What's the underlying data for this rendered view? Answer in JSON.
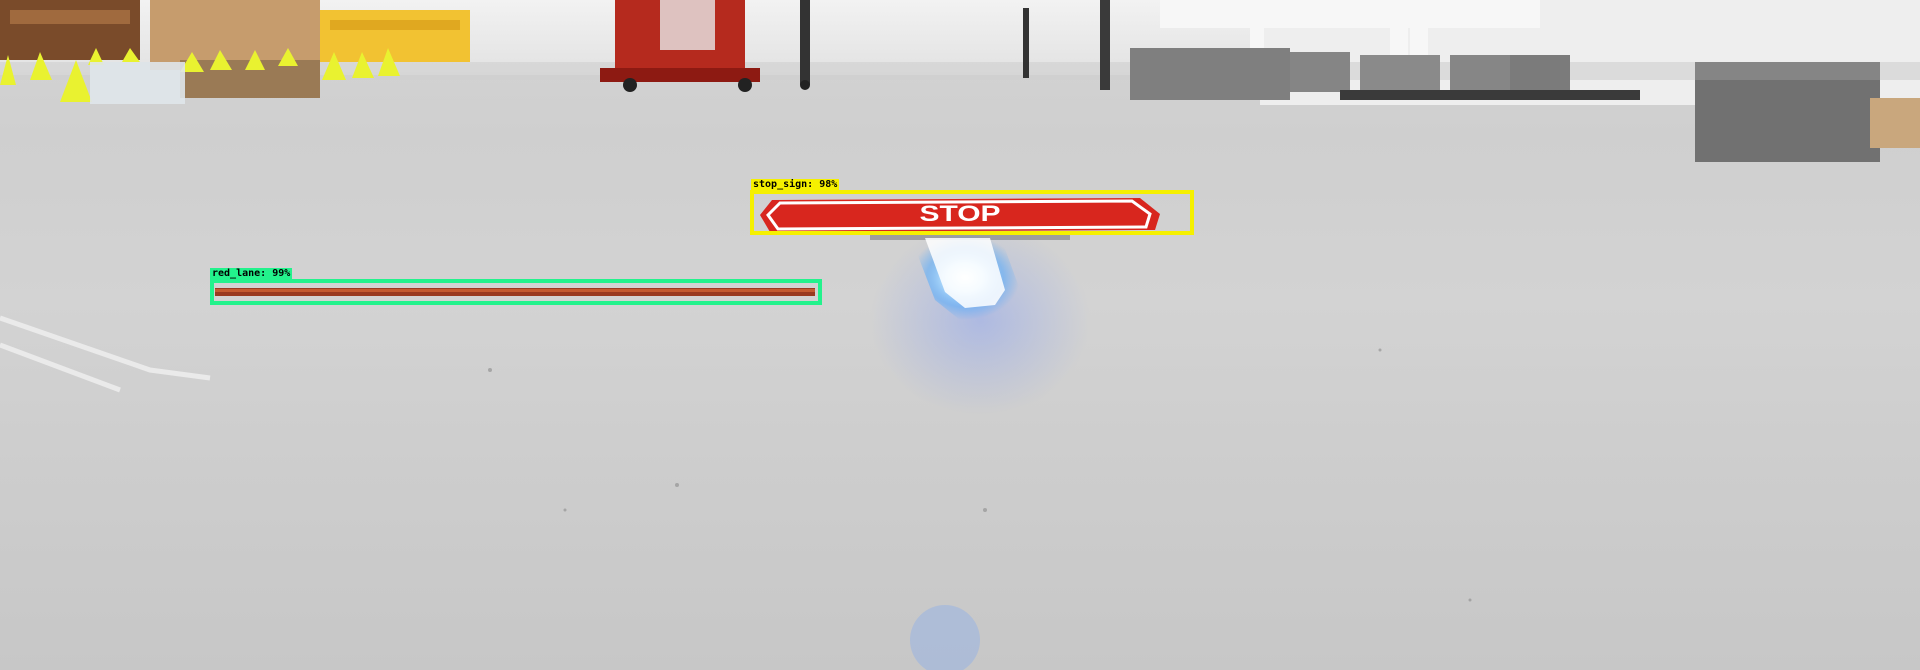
{
  "scene": {
    "description_objects": [
      "floor",
      "traffic-cones",
      "stop-sign-on-floor",
      "red-lane-tape",
      "robot-cart",
      "concrete-blocks",
      "light-reflection"
    ]
  },
  "stop_sign": {
    "text": "STOP"
  },
  "detections": [
    {
      "label": "stop_sign: 98%",
      "color": "#f5f000"
    },
    {
      "label": "red_lane: 99%",
      "color": "#23f28c"
    }
  ]
}
